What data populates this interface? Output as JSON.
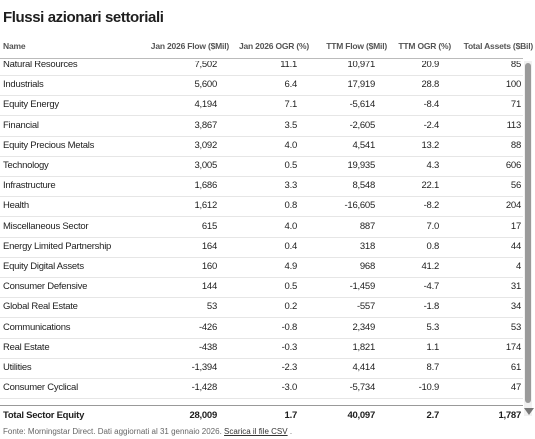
{
  "header": {
    "title": "Flussi azionari settoriali"
  },
  "table": {
    "columns": [
      "Name",
      "Jan 2026 Flow ($Mil)",
      "Jan 2026 OGR (%)",
      "TTM Flow ($Mil)",
      "TTM OGR (%)",
      "Total Assets ($Bil)"
    ],
    "rows": [
      [
        "Natural Resources",
        "7,502",
        "11.1",
        "10,971",
        "20.9",
        "85"
      ],
      [
        "Industrials",
        "5,600",
        "6.4",
        "17,919",
        "28.8",
        "100"
      ],
      [
        "Equity Energy",
        "4,194",
        "7.1",
        "-5,614",
        "-8.4",
        "71"
      ],
      [
        "Financial",
        "3,867",
        "3.5",
        "-2,605",
        "-2.4",
        "113"
      ],
      [
        "Equity Precious Metals",
        "3,092",
        "4.0",
        "4,541",
        "13.2",
        "88"
      ],
      [
        "Technology",
        "3,005",
        "0.5",
        "19,935",
        "4.3",
        "606"
      ],
      [
        "Infrastructure",
        "1,686",
        "3.3",
        "8,548",
        "22.1",
        "56"
      ],
      [
        "Health",
        "1,612",
        "0.8",
        "-16,605",
        "-8.2",
        "204"
      ],
      [
        "Miscellaneous Sector",
        "615",
        "4.0",
        "887",
        "7.0",
        "17"
      ],
      [
        "Energy Limited Partnership",
        "164",
        "0.4",
        "318",
        "0.8",
        "44"
      ],
      [
        "Equity Digital Assets",
        "160",
        "4.9",
        "968",
        "41.2",
        "4"
      ],
      [
        "Consumer Defensive",
        "144",
        "0.5",
        "-1,459",
        "-4.7",
        "31"
      ],
      [
        "Global Real Estate",
        "53",
        "0.2",
        "-557",
        "-1.8",
        "34"
      ],
      [
        "Communications",
        "-426",
        "-0.8",
        "2,349",
        "5.3",
        "53"
      ],
      [
        "Real Estate",
        "-438",
        "-0.3",
        "1,821",
        "1.1",
        "174"
      ],
      [
        "Utilities",
        "-1,394",
        "-2.3",
        "4,414",
        "8.7",
        "61"
      ],
      [
        "Consumer Cyclical",
        "-1,428",
        "-3.0",
        "-5,734",
        "-10.9",
        "47"
      ]
    ],
    "total": [
      "Total Sector Equity",
      "28,009",
      "1.7",
      "40,097",
      "2.7",
      "1,787"
    ]
  },
  "footer": {
    "source": "Fonte: Morningstar Direct. Dati aggiornati al 31 gennaio 2026.",
    "link": "Scarica il file CSV",
    "after": "."
  }
}
